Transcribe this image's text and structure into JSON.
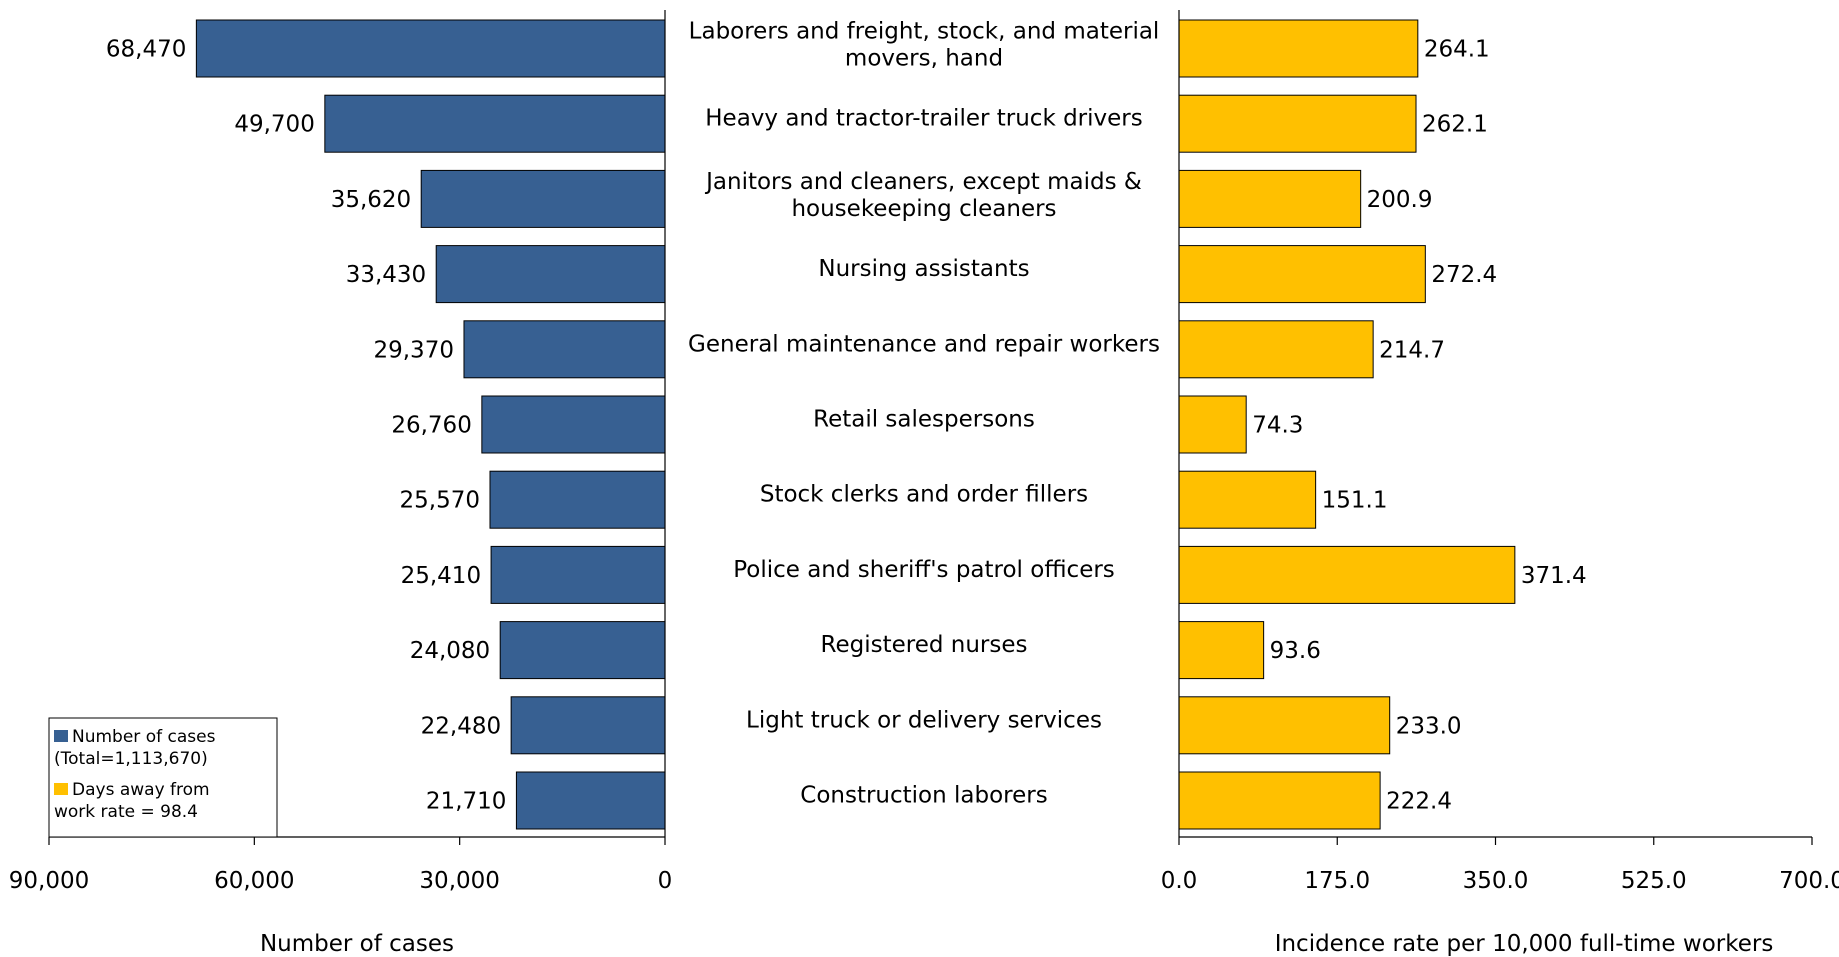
{
  "chart_data": {
    "type": "bar",
    "orientation": "horizontal",
    "layout": "back-to-back",
    "categories": [
      [
        "Laborers and freight, stock, and material",
        "movers, hand"
      ],
      [
        "Heavy and tractor-trailer truck drivers"
      ],
      [
        "Janitors and cleaners, except maids &",
        "housekeeping cleaners"
      ],
      [
        "Nursing assistants"
      ],
      [
        "General maintenance and repair workers"
      ],
      [
        "Retail salespersons"
      ],
      [
        "Stock clerks and order fillers"
      ],
      [
        "Police and sheriff's patrol officers"
      ],
      [
        "Registered nurses"
      ],
      [
        "Light truck or delivery services"
      ],
      [
        "Construction laborers"
      ]
    ],
    "series": [
      {
        "name": "Number of cases",
        "color": "#376092",
        "values": [
          68470,
          49700,
          35620,
          33430,
          29370,
          26760,
          25570,
          25410,
          24080,
          22480,
          21710
        ],
        "labels": [
          "68,470",
          "49,700",
          "35,620",
          "33,430",
          "29,370",
          "26,760",
          "25,570",
          "25,410",
          "24,080",
          "22,480",
          "21,710"
        ]
      },
      {
        "name": "Days away from work rate",
        "color": "#FFC000",
        "values": [
          264.1,
          262.1,
          200.9,
          272.4,
          214.7,
          74.3,
          151.1,
          371.4,
          93.6,
          233.0,
          222.4
        ],
        "labels": [
          "264.1",
          "262.1",
          "200.9",
          "272.4",
          "214.7",
          "74.3",
          "151.1",
          "371.4",
          "93.6",
          "233.0",
          "222.4"
        ]
      }
    ],
    "left_axis": {
      "title": "Number of cases",
      "range": [
        0,
        90000
      ],
      "reversed": true,
      "ticks": [
        90000,
        60000,
        30000,
        0
      ],
      "tick_labels": [
        "90,000",
        "60,000",
        "30,000",
        "0"
      ]
    },
    "right_axis": {
      "title": "Incidence rate per 10,000 full-time workers",
      "range": [
        0,
        700
      ],
      "ticks": [
        0,
        175,
        350,
        525,
        700
      ],
      "tick_labels": [
        "0.0",
        "175.0",
        "350.0",
        "525.0",
        "700.0"
      ]
    },
    "legend": {
      "placement": "bottom-left",
      "items": [
        {
          "series": 0,
          "lines": [
            "Number of cases",
            "(Total=1,113,670)"
          ]
        },
        {
          "series": 1,
          "lines": [
            "Days away from",
            "work rate = 98.4"
          ]
        }
      ]
    },
    "grid": false
  }
}
